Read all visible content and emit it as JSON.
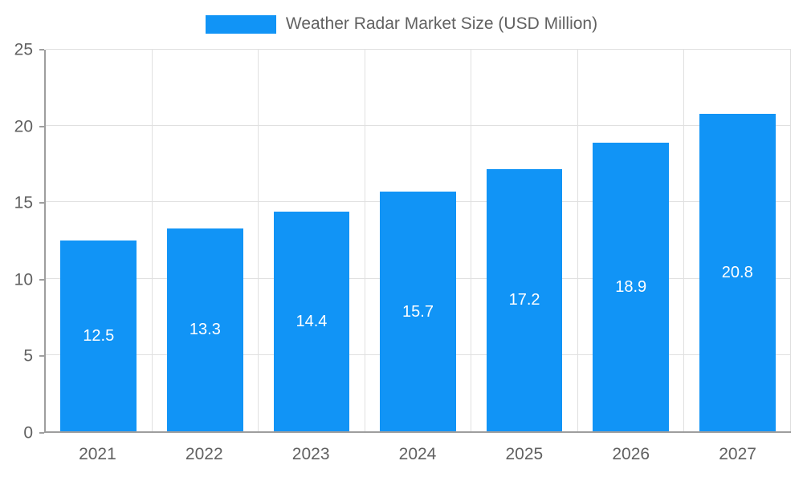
{
  "chart_data": {
    "type": "bar",
    "title": "Weather Radar Market Size (USD Million)",
    "categories": [
      "2021",
      "2022",
      "2023",
      "2024",
      "2025",
      "2026",
      "2027"
    ],
    "values": [
      12.5,
      13.3,
      14.4,
      15.7,
      17.2,
      18.9,
      20.8
    ],
    "value_labels": [
      "12.5",
      "13.3",
      "14.4",
      "15.7",
      "17.2",
      "18.9",
      "20.8"
    ],
    "xlabel": "",
    "ylabel": "",
    "ylim": [
      0,
      25
    ],
    "yticks": [
      0,
      5,
      10,
      15,
      20,
      25
    ],
    "grid": true,
    "legend_position": "top",
    "colors": {
      "bar": "#1194f6",
      "grid": "#e0e0e0",
      "axis": "#9e9e9e",
      "tick_text": "#616161",
      "bar_label_text": "#ffffff"
    }
  }
}
